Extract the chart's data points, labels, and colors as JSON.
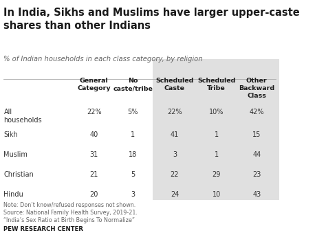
{
  "title": "In India, Sikhs and Muslims have larger upper-caste\nshares than other Indians",
  "subtitle": "% of Indian households in each class category, by religion",
  "col_headers": [
    "General\nCategory",
    "No\ncaste/tribe",
    "Scheduled\nCaste",
    "Scheduled\nTribe",
    "Other\nBackward\nClass"
  ],
  "row_labels": [
    "All\nhouseholds",
    "Sikh",
    "Muslim",
    "Christian",
    "Hindu"
  ],
  "data": [
    [
      "22%",
      "5%",
      "22%",
      "10%",
      "42%"
    ],
    [
      "40",
      "1",
      "41",
      "1",
      "15"
    ],
    [
      "31",
      "18",
      "3",
      "1",
      "44"
    ],
    [
      "21",
      "5",
      "22",
      "29",
      "23"
    ],
    [
      "20",
      "3",
      "24",
      "10",
      "43"
    ]
  ],
  "note1": "Note: Don’t know/refused responses not shown.",
  "note2": "Source: National Family Health Survey, 2019-21.",
  "note3": "“India’s Sex Ratio at Birth Begins To Normalize”",
  "footer": "PEW RESEARCH CENTER",
  "bg_color": "#ffffff",
  "shaded_color": "#e0e0e0",
  "title_color": "#1a1a1a",
  "subtitle_color": "#666666",
  "header_color": "#1a1a1a",
  "data_color": "#333333",
  "note_color": "#666666",
  "footer_color": "#1a1a1a"
}
